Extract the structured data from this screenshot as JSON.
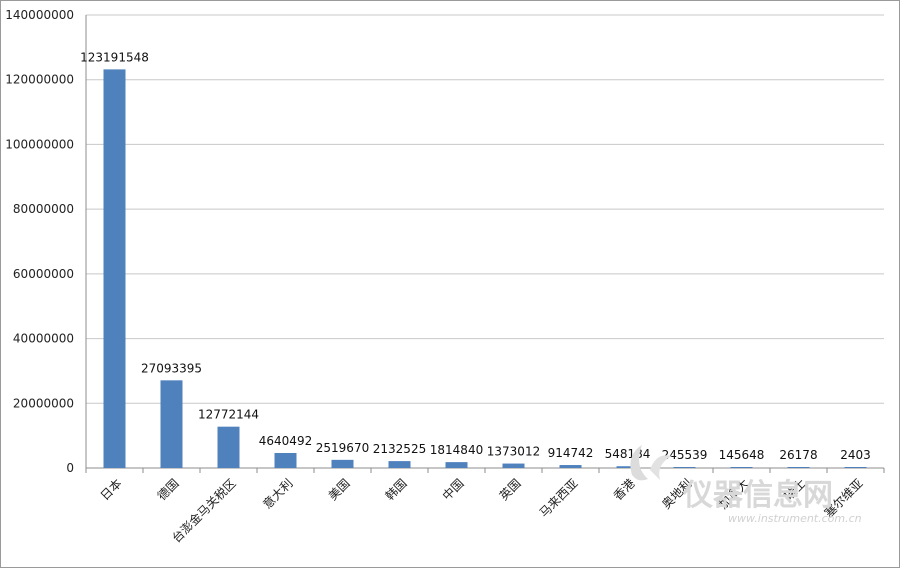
{
  "chart_data": {
    "type": "bar",
    "title": "",
    "xlabel": "",
    "ylabel": "",
    "ylim": [
      0,
      140000000
    ],
    "y_ticks": [
      "0",
      "20000000",
      "40000000",
      "60000000",
      "80000000",
      "100000000",
      "120000000",
      "140000000"
    ],
    "grid": true,
    "legend": "none",
    "bar_color": "#4f81bd",
    "categories": [
      "日本",
      "德国",
      "台澎金马关税区",
      "意大利",
      "美国",
      "韩国",
      "中国",
      "英国",
      "马来西亚",
      "香港",
      "奥地利",
      "加拿大",
      "瑞士",
      "塞尔维亚"
    ],
    "values": [
      123191548,
      27093395,
      12772144,
      4640492,
      2519670,
      2132525,
      1814840,
      1373012,
      914742,
      548184,
      245539,
      145648,
      26178,
      2403
    ],
    "data_labels": [
      "123191548",
      "27093395",
      "12772144",
      "4640492",
      "2519670",
      "2132525",
      "1814840",
      "1373012",
      "914742",
      "548184",
      "245539",
      "145648",
      "26178",
      "2403"
    ]
  },
  "watermark": {
    "text": "仪器信息网",
    "url": "www.instrument.com.cn",
    "icon": "instrument-logo-icon"
  }
}
